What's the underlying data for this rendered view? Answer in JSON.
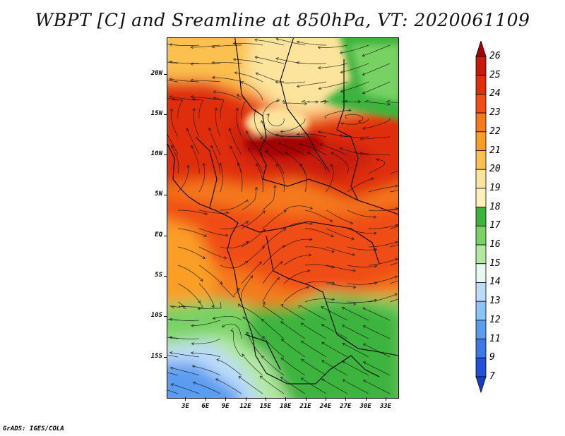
{
  "title": "WBPT [C] and Sreamline at 850hPa, VT: 2020061109",
  "footer": "GrADS: IGES/COLA",
  "map": {
    "lat_labels": [
      "20N",
      "15N",
      "10N",
      "5N",
      "EQ",
      "5S",
      "10S",
      "15S"
    ],
    "lat_values": [
      20,
      15,
      10,
      5,
      0,
      -5,
      -10,
      -15
    ],
    "lat_range": [
      -20,
      24.5
    ],
    "lon_labels": [
      "3E",
      "6E",
      "9E",
      "12E",
      "15E",
      "18E",
      "21E",
      "24E",
      "27E",
      "30E",
      "33E"
    ],
    "lon_values": [
      3,
      6,
      9,
      12,
      15,
      18,
      21,
      24,
      27,
      30,
      33
    ],
    "lon_range": [
      0.2,
      34.8
    ]
  },
  "colorbar": {
    "labels": [
      "26",
      "25",
      "24",
      "23",
      "22",
      "21",
      "20",
      "19",
      "18",
      "17",
      "16",
      "15",
      "14",
      "13",
      "12",
      "11",
      "9",
      "7"
    ],
    "colors": [
      "#a50000",
      "#c81a08",
      "#e02d0c",
      "#f04e14",
      "#f57a1a",
      "#fa9e28",
      "#fcc050",
      "#fde49c",
      "#fdf0b8",
      "#3cb43c",
      "#78d264",
      "#b4e8a0",
      "#e6f8f0",
      "#bcdcfa",
      "#8cc4f5",
      "#5a9cf0",
      "#3c78e6",
      "#2050dc",
      "#1440c8"
    ]
  }
}
